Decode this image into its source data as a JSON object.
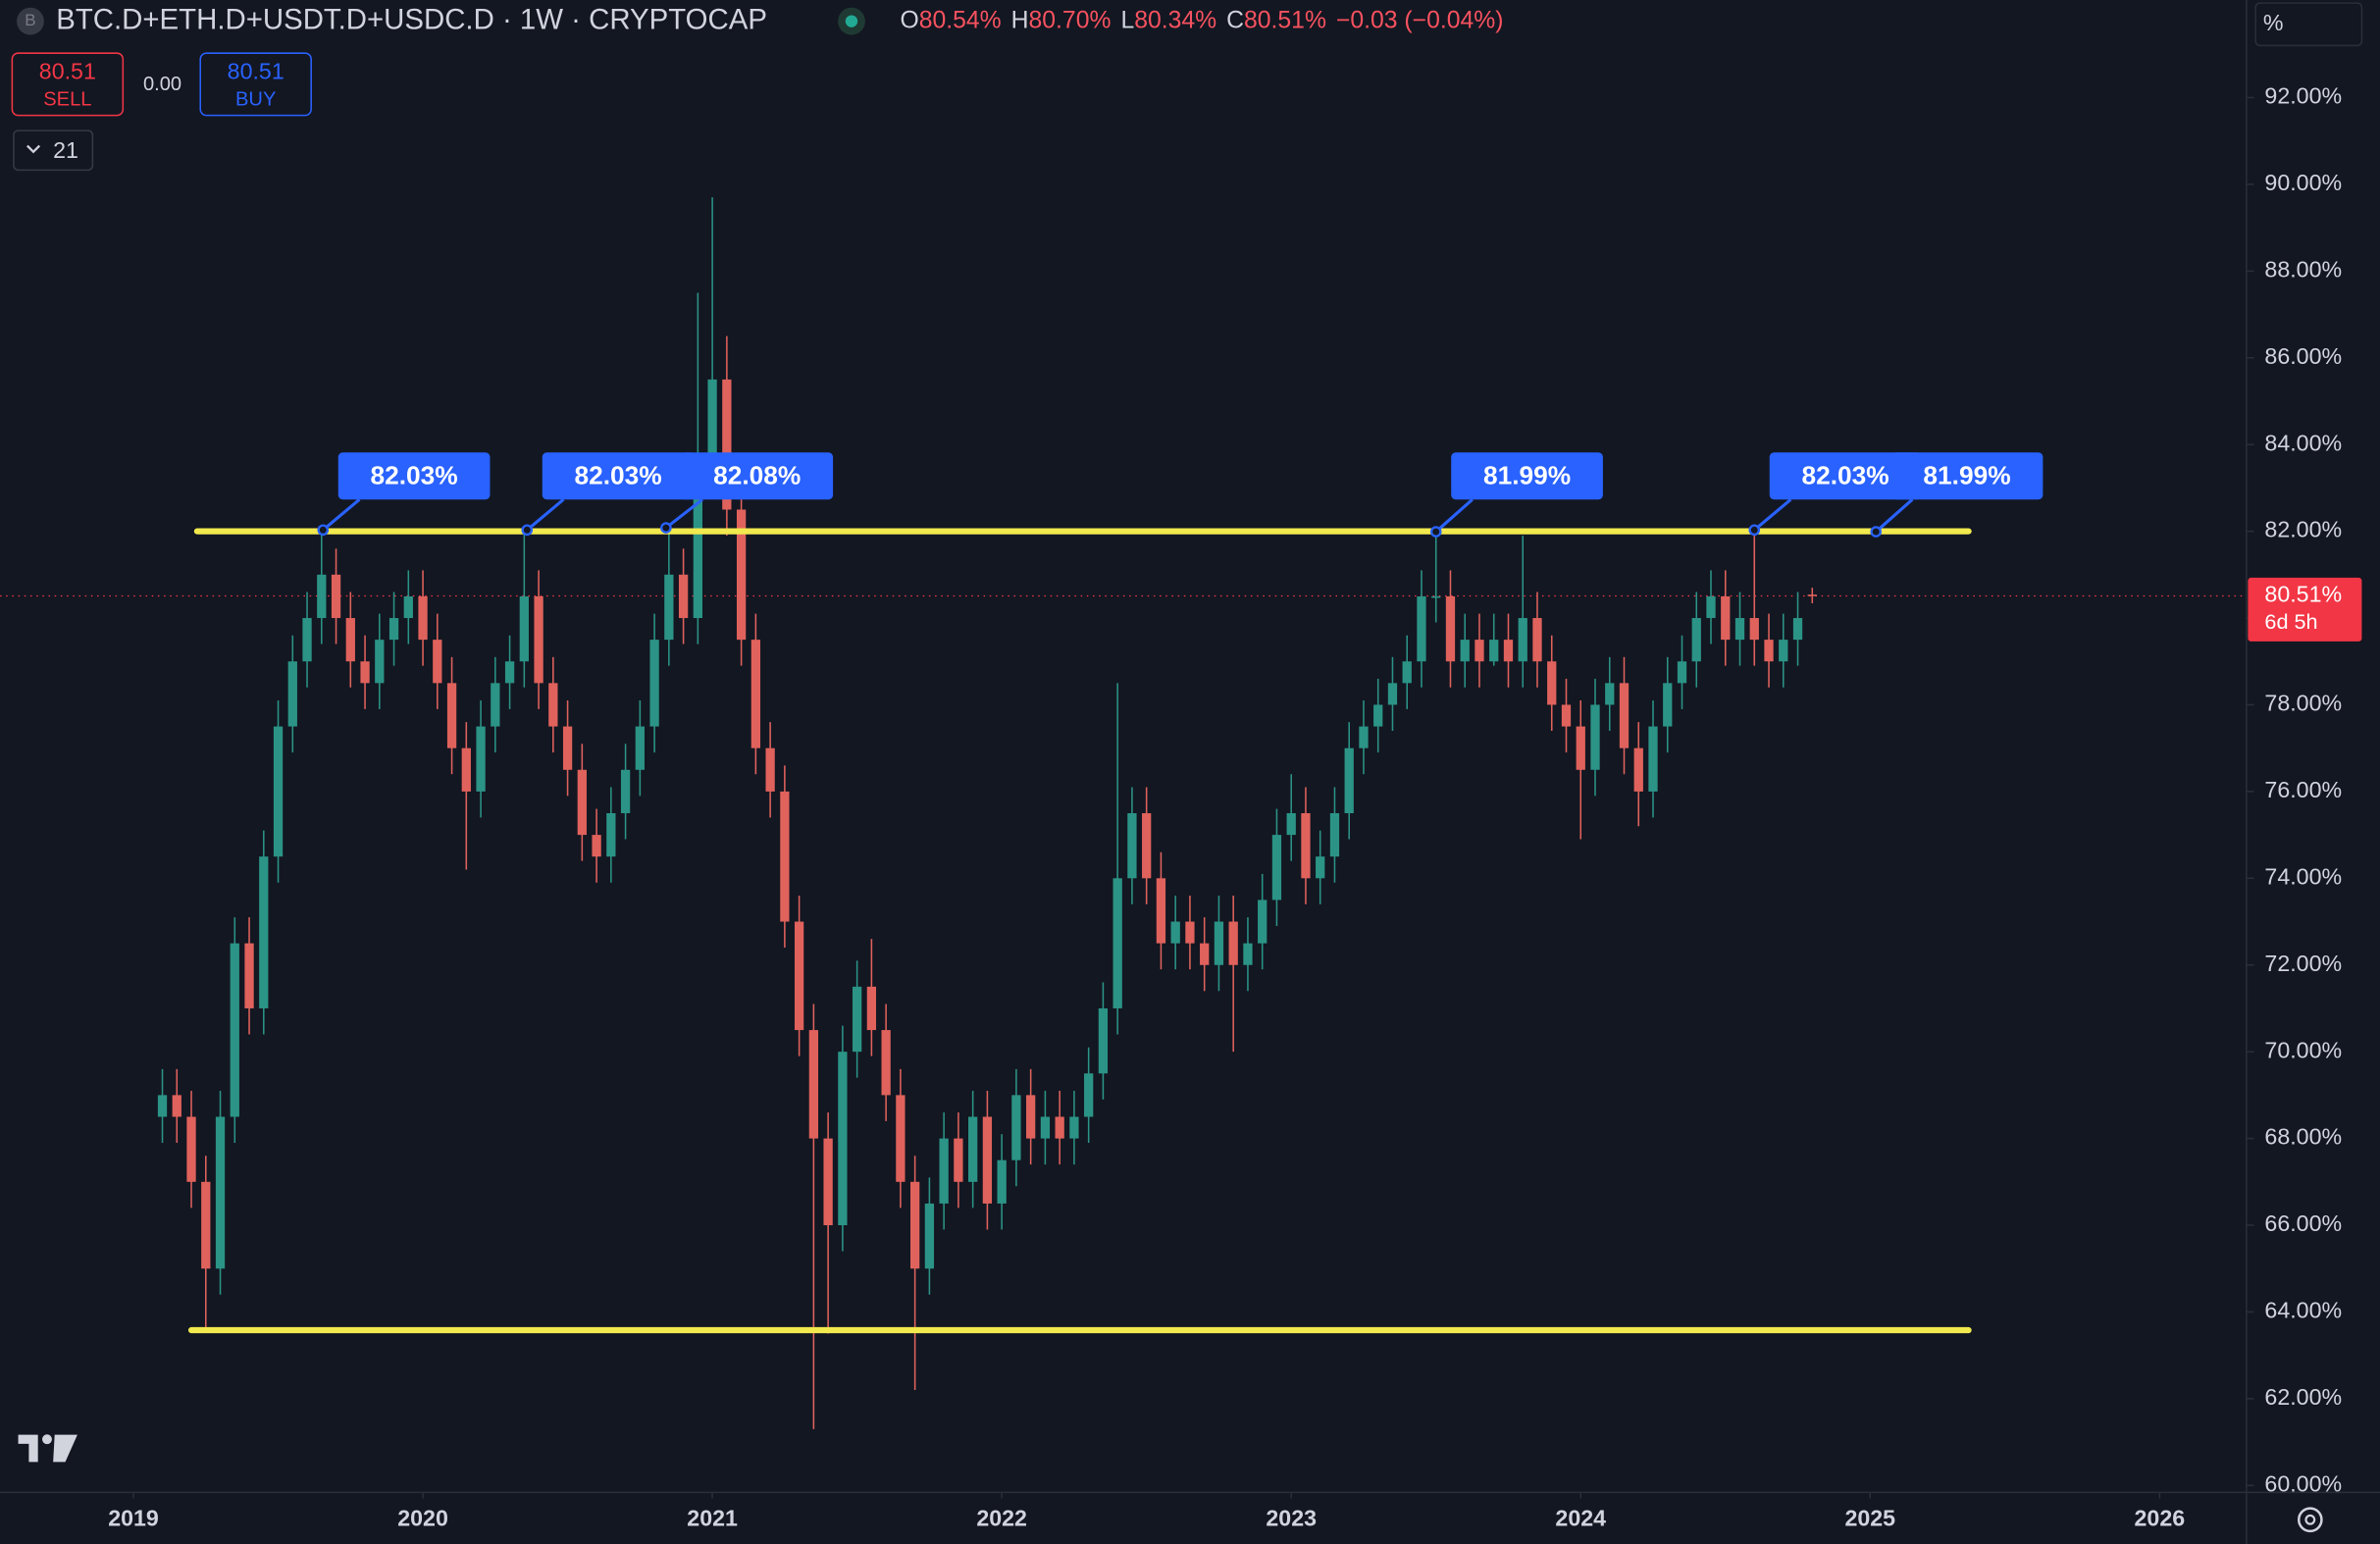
{
  "chart_data": {
    "type": "candlestick",
    "title": "BTC.D+ETH.D+USDT.D+USDC.D · 1W · CRYPTOCAP",
    "legend": [
      {
        "key": "O",
        "value": "80.54%"
      },
      {
        "key": "H",
        "value": "80.70%"
      },
      {
        "key": "L",
        "value": "80.34%"
      },
      {
        "key": "C",
        "value": "80.51%"
      }
    ],
    "change": "−0.03 (−0.04%)",
    "trade": {
      "sell_price": "80.51",
      "sell_label": "SELL",
      "spread": "0.00",
      "buy_price": "80.51",
      "buy_label": "BUY"
    },
    "indicators_count": "21",
    "unit_label": "%",
    "countdown": "6d 5h",
    "colors": {
      "up": "#2b9486",
      "down": "#e0625c",
      "level": "#f2e94e",
      "annotation": "#2962ff",
      "price_line": "#f23645"
    },
    "x": [
      2019.1,
      2019.15,
      2019.2,
      2019.25,
      2019.3,
      2019.35,
      2019.4,
      2019.45,
      2019.5,
      2019.55,
      2019.6,
      2019.65,
      2019.7,
      2019.75,
      2019.8,
      2019.85,
      2019.9,
      2019.95,
      2020.0,
      2020.05,
      2020.1,
      2020.15,
      2020.2,
      2020.25,
      2020.3,
      2020.35,
      2020.4,
      2020.45,
      2020.5,
      2020.55,
      2020.6,
      2020.65,
      2020.7,
      2020.75,
      2020.8,
      2020.85,
      2020.9,
      2020.95,
      2021.0,
      2021.05,
      2021.1,
      2021.15,
      2021.2,
      2021.25,
      2021.3,
      2021.35,
      2021.4,
      2021.45,
      2021.5,
      2021.55,
      2021.6,
      2021.65,
      2021.7,
      2021.75,
      2021.8,
      2021.85,
      2021.9,
      2021.95,
      2022.0,
      2022.05,
      2022.1,
      2022.15,
      2022.2,
      2022.25,
      2022.3,
      2022.35,
      2022.4,
      2022.45,
      2022.5,
      2022.55,
      2022.6,
      2022.65,
      2022.7,
      2022.75,
      2022.8,
      2022.85,
      2022.9,
      2022.95,
      2023.0,
      2023.05,
      2023.1,
      2023.15,
      2023.2,
      2023.25,
      2023.3,
      2023.35,
      2023.4,
      2023.45,
      2023.5,
      2023.55,
      2023.6,
      2023.65,
      2023.7,
      2023.75,
      2023.8,
      2023.85,
      2023.9,
      2023.95,
      2024.0,
      2024.05,
      2024.1,
      2024.15,
      2024.2,
      2024.25,
      2024.3,
      2024.35,
      2024.4,
      2024.45,
      2024.5,
      2024.55,
      2024.6,
      2024.65,
      2024.7,
      2024.75,
      2024.8
    ],
    "open": [
      68.5,
      69.0,
      68.5,
      67.0,
      65.0,
      68.5,
      72.5,
      71.0,
      74.5,
      77.5,
      79.0,
      80.0,
      81.0,
      80.0,
      79.0,
      78.5,
      79.5,
      80.0,
      80.5,
      79.5,
      78.5,
      77.0,
      76.0,
      77.5,
      78.5,
      79.0,
      80.5,
      78.5,
      77.5,
      76.5,
      75.0,
      74.5,
      75.5,
      76.5,
      77.5,
      79.5,
      81.0,
      80.0,
      83.5,
      85.5,
      82.5,
      79.5,
      77.0,
      76.0,
      73.0,
      70.5,
      68.0,
      66.0,
      70.0,
      71.5,
      70.5,
      69.0,
      67.0,
      65.0,
      66.5,
      68.0,
      67.0,
      68.5,
      66.5,
      67.5,
      69.0,
      68.0,
      68.5,
      68.0,
      68.5,
      69.5,
      71.0,
      74.0,
      75.5,
      74.0,
      72.5,
      73.0,
      72.5,
      72.0,
      73.0,
      72.0,
      72.5,
      73.5,
      75.0,
      75.5,
      74.0,
      74.5,
      75.5,
      77.0,
      77.5,
      78.0,
      78.5,
      79.0,
      80.5,
      80.5,
      79.0,
      79.5,
      79.0,
      79.5,
      79.0,
      80.0,
      79.0,
      78.0,
      77.5,
      76.5,
      78.0,
      78.5,
      77.0,
      76.0,
      77.5,
      78.5,
      79.0,
      80.0,
      80.5,
      79.5,
      80.0,
      79.5,
      79.0,
      79.5,
      80.54
    ],
    "high": [
      69.6,
      69.6,
      69.1,
      67.6,
      69.1,
      73.1,
      73.1,
      75.1,
      78.1,
      79.6,
      80.6,
      82.03,
      81.6,
      80.6,
      79.6,
      80.1,
      80.6,
      81.1,
      81.1,
      80.1,
      79.1,
      77.6,
      78.1,
      79.1,
      79.6,
      82.03,
      81.1,
      79.1,
      78.1,
      77.1,
      75.6,
      76.1,
      77.1,
      78.1,
      80.1,
      82.08,
      81.6,
      87.5,
      89.7,
      86.5,
      83.1,
      80.1,
      77.6,
      76.6,
      73.6,
      71.1,
      68.6,
      70.6,
      72.1,
      72.6,
      71.1,
      69.6,
      67.6,
      67.1,
      68.6,
      68.6,
      69.1,
      69.1,
      68.1,
      69.6,
      69.6,
      69.1,
      69.1,
      69.1,
      70.1,
      71.6,
      78.5,
      76.1,
      76.1,
      74.6,
      73.6,
      73.6,
      73.1,
      73.6,
      73.6,
      73.1,
      74.1,
      75.6,
      76.4,
      76.1,
      75.1,
      76.1,
      77.6,
      78.1,
      78.6,
      79.1,
      79.6,
      81.1,
      81.99,
      81.1,
      80.1,
      80.1,
      80.1,
      80.1,
      81.9,
      80.6,
      79.6,
      78.6,
      78.1,
      78.6,
      79.1,
      79.1,
      77.6,
      78.1,
      79.1,
      79.6,
      80.6,
      81.1,
      81.1,
      80.6,
      82.03,
      80.1,
      80.1,
      80.6,
      80.7
    ],
    "low": [
      67.9,
      67.9,
      66.4,
      63.6,
      64.4,
      67.9,
      70.4,
      70.4,
      73.9,
      76.9,
      78.4,
      79.4,
      79.4,
      78.4,
      77.9,
      77.9,
      78.9,
      79.4,
      78.9,
      77.9,
      76.4,
      74.2,
      75.4,
      76.9,
      77.9,
      78.4,
      77.9,
      76.9,
      75.9,
      74.4,
      73.9,
      73.9,
      74.9,
      75.9,
      76.9,
      78.9,
      79.4,
      79.4,
      82.9,
      81.9,
      78.9,
      76.4,
      75.4,
      72.4,
      69.9,
      61.3,
      63.5,
      65.4,
      69.4,
      69.9,
      68.4,
      66.4,
      62.2,
      64.4,
      65.9,
      66.4,
      66.4,
      65.9,
      65.9,
      66.9,
      67.4,
      67.4,
      67.4,
      67.4,
      67.9,
      68.9,
      70.4,
      73.4,
      73.4,
      71.9,
      71.9,
      71.9,
      71.4,
      71.4,
      70.0,
      71.4,
      71.9,
      72.9,
      74.4,
      73.4,
      73.4,
      73.9,
      74.9,
      76.4,
      76.9,
      77.4,
      77.9,
      78.4,
      79.9,
      78.4,
      78.4,
      78.4,
      78.9,
      78.4,
      78.4,
      78.4,
      77.4,
      76.9,
      74.9,
      75.9,
      77.4,
      76.4,
      75.2,
      75.4,
      76.9,
      77.9,
      78.4,
      79.4,
      78.9,
      78.9,
      78.9,
      78.4,
      78.4,
      78.9,
      80.34
    ],
    "close": [
      69.0,
      68.5,
      67.0,
      65.0,
      68.5,
      72.5,
      71.0,
      74.5,
      77.5,
      79.0,
      80.0,
      81.0,
      80.0,
      79.0,
      78.5,
      79.5,
      80.0,
      80.5,
      79.5,
      78.5,
      77.0,
      76.0,
      77.5,
      78.5,
      79.0,
      80.5,
      78.5,
      77.5,
      76.5,
      75.0,
      74.5,
      75.5,
      76.5,
      77.5,
      79.5,
      81.0,
      80.0,
      83.5,
      85.5,
      82.5,
      79.5,
      77.0,
      76.0,
      73.0,
      70.5,
      68.0,
      66.0,
      70.0,
      71.5,
      70.5,
      69.0,
      67.0,
      65.0,
      66.5,
      68.0,
      67.0,
      68.5,
      66.5,
      67.5,
      69.0,
      68.0,
      68.5,
      68.0,
      68.5,
      69.5,
      71.0,
      74.0,
      75.5,
      74.0,
      72.5,
      73.0,
      72.5,
      72.0,
      73.0,
      72.0,
      72.5,
      73.5,
      75.0,
      75.5,
      74.0,
      74.5,
      75.5,
      77.0,
      77.5,
      78.0,
      78.5,
      79.0,
      80.5,
      80.5,
      79.0,
      79.5,
      79.0,
      79.5,
      79.0,
      80.0,
      79.0,
      78.0,
      77.5,
      76.5,
      78.0,
      78.5,
      77.0,
      76.0,
      77.5,
      78.5,
      79.0,
      80.0,
      80.5,
      79.5,
      80.0,
      79.5,
      79.0,
      79.5,
      80.0,
      80.51
    ],
    "xlim": [
      2018.539,
      2026.3
    ],
    "xticks": [
      2019,
      2020,
      2021,
      2022,
      2023,
      2024,
      2025,
      2026
    ],
    "ylim": [
      59.84,
      94.25
    ],
    "yticks": [
      {
        "value": 60,
        "label": "60.00%"
      },
      {
        "value": 62,
        "label": "62.00%"
      },
      {
        "value": 64,
        "label": "64.00%"
      },
      {
        "value": 66,
        "label": "66.00%"
      },
      {
        "value": 68,
        "label": "68.00%"
      },
      {
        "value": 70,
        "label": "70.00%"
      },
      {
        "value": 72,
        "label": "72.00%"
      },
      {
        "value": 74,
        "label": "74.00%"
      },
      {
        "value": 76,
        "label": "76.00%"
      },
      {
        "value": 78,
        "label": "78.00%"
      },
      {
        "value": 80,
        "label": "80.00%"
      },
      {
        "value": 82,
        "label": "82.00%"
      },
      {
        "value": 84,
        "label": "84.00%"
      },
      {
        "value": 86,
        "label": "86.00%"
      },
      {
        "value": 88,
        "label": "88.00%"
      },
      {
        "value": 90,
        "label": "90.00%"
      },
      {
        "value": 92,
        "label": "92.00%"
      }
    ],
    "levels": [
      {
        "value": 82.0,
        "from": 2019.22,
        "to": 2025.34
      },
      {
        "value": 63.58,
        "from": 2019.2,
        "to": 2025.34
      }
    ],
    "annotations": [
      {
        "x": 2019.655,
        "value": 82.03,
        "label": "82.03%"
      },
      {
        "x": 2020.36,
        "value": 82.03,
        "label": "82.03%"
      },
      {
        "x": 2020.84,
        "value": 82.08,
        "label": "82.08%"
      },
      {
        "x": 2023.5,
        "value": 81.99,
        "label": "81.99%"
      },
      {
        "x": 2024.6,
        "value": 82.03,
        "label": "82.03%"
      },
      {
        "x": 2025.02,
        "value": 81.99,
        "label": "81.99%"
      }
    ],
    "last_price": {
      "value": 80.51,
      "label": "80.51%"
    }
  }
}
